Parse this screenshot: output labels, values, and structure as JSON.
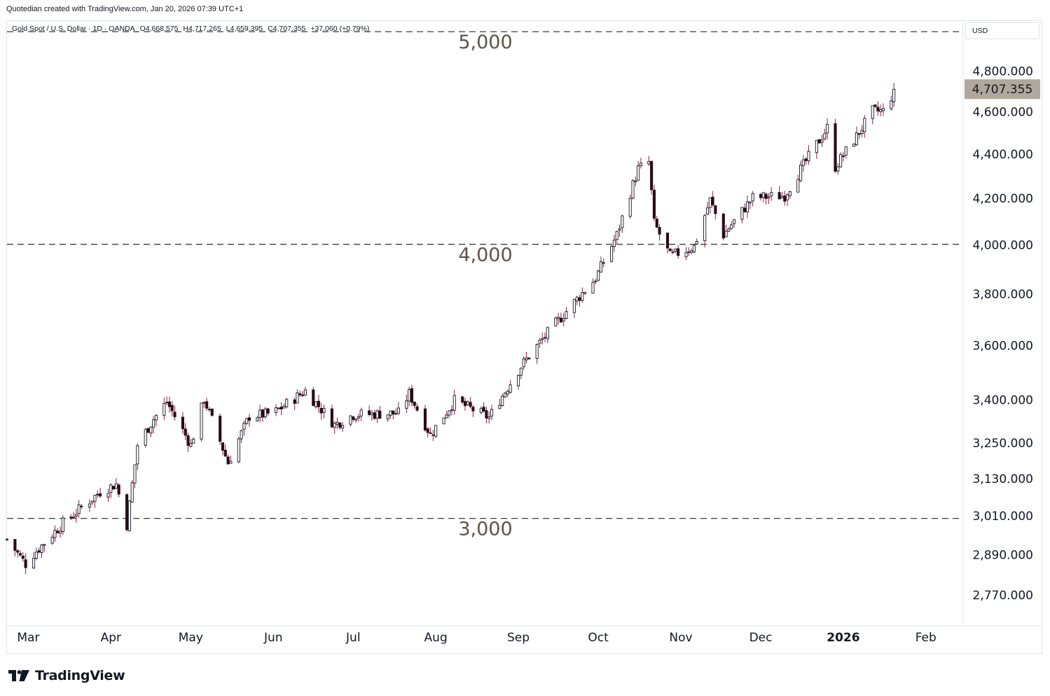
{
  "attribution": "Quotedian created with TradingView.com, Jan 20, 2026 07:39 UTC+1",
  "legend": {
    "symbol": "Gold Spot / U.S. Dollar · 1D · OANDA",
    "open": "O4,668.575",
    "high": "H4,717.265",
    "low": "L4,659.395",
    "close": "C4,707.355",
    "change": "+37.060 (+0.79%)"
  },
  "currency": "USD",
  "brand": {
    "name": "TradingView",
    "icon": "tradingview-logo-icon"
  },
  "colors": {
    "candle_up": "#131722",
    "candle_down": "#2a0b16",
    "up_body": "#ffffff",
    "wick": "#8c1d4a",
    "level_line": "#3c3c3c",
    "level_label": "#5d5448",
    "price_badge": "#b0a79d"
  },
  "chart_data": {
    "type": "candlestick",
    "title": "Gold Spot / U.S. Dollar · 1D · OANDA",
    "y_scale": "log",
    "y_range": [
      2680,
      5060
    ],
    "y_ticks": [
      "4,800.000",
      "4,600.000",
      "4,400.000",
      "4,200.000",
      "4,000.000",
      "3,800.000",
      "3,600.000",
      "3,400.000",
      "3,250.000",
      "3,130.000",
      "3,010.000",
      "2,890.000",
      "2,770.000"
    ],
    "y_tick_values": [
      4800,
      4600,
      4400,
      4200,
      4000,
      3800,
      3600,
      3400,
      3250,
      3130,
      3010,
      2890,
      2770
    ],
    "x_tick_labels": [
      "Mar",
      "Apr",
      "May",
      "Jun",
      "Jul",
      "Aug",
      "Sep",
      "Oct",
      "Nov",
      "Dec",
      "2026",
      "Feb"
    ],
    "x_tick_dates": [
      "2025-03-01",
      "2025-04-01",
      "2025-05-01",
      "2025-06-01",
      "2025-07-01",
      "2025-08-01",
      "2025-09-01",
      "2025-10-01",
      "2025-11-01",
      "2025-12-01",
      "2026-01-01",
      "2026-02-01"
    ],
    "x_range": [
      "2025-02-21",
      "2026-02-15"
    ],
    "last_price_label": "4,707.355",
    "last_price": 4707.355,
    "horizontal_levels": [
      {
        "value": 5000,
        "label": "5,000"
      },
      {
        "value": 4000,
        "label": "4,000"
      },
      {
        "value": 3000,
        "label": "3,000"
      }
    ],
    "anchors": [
      [
        "2025-02-21",
        2935
      ],
      [
        "2025-02-28",
        2860
      ],
      [
        "2025-03-03",
        2890
      ],
      [
        "2025-03-14",
        2985
      ],
      [
        "2025-03-28",
        3085
      ],
      [
        "2025-04-03",
        3110
      ],
      [
        "2025-04-07",
        2980
      ],
      [
        "2025-04-11",
        3240
      ],
      [
        "2025-04-17",
        3330
      ],
      [
        "2025-04-22",
        3390
      ],
      [
        "2025-05-01",
        3240
      ],
      [
        "2025-05-06",
        3400
      ],
      [
        "2025-05-15",
        3180
      ],
      [
        "2025-05-23",
        3340
      ],
      [
        "2025-06-01",
        3350
      ],
      [
        "2025-06-13",
        3430
      ],
      [
        "2025-06-24",
        3310
      ],
      [
        "2025-07-01",
        3345
      ],
      [
        "2025-07-18",
        3350
      ],
      [
        "2025-07-22",
        3420
      ],
      [
        "2025-07-30",
        3275
      ],
      [
        "2025-08-08",
        3395
      ],
      [
        "2025-08-21",
        3335
      ],
      [
        "2025-09-02",
        3520
      ],
      [
        "2025-09-12",
        3645
      ],
      [
        "2025-09-30",
        3860
      ],
      [
        "2025-10-08",
        4040
      ],
      [
        "2025-10-16",
        4330
      ],
      [
        "2025-10-20",
        4360
      ],
      [
        "2025-10-22",
        4090
      ],
      [
        "2025-10-28",
        3950
      ],
      [
        "2025-11-06",
        3990
      ],
      [
        "2025-11-12",
        4190
      ],
      [
        "2025-11-17",
        4040
      ],
      [
        "2025-11-28",
        4200
      ],
      [
        "2025-12-10",
        4210
      ],
      [
        "2025-12-26",
        4520
      ],
      [
        "2025-12-29",
        4340
      ],
      [
        "2026-01-06",
        4480
      ],
      [
        "2026-01-12",
        4600
      ],
      [
        "2026-01-16",
        4600
      ],
      [
        "2026-01-19",
        4670
      ],
      [
        "2026-01-20",
        4707
      ]
    ]
  }
}
